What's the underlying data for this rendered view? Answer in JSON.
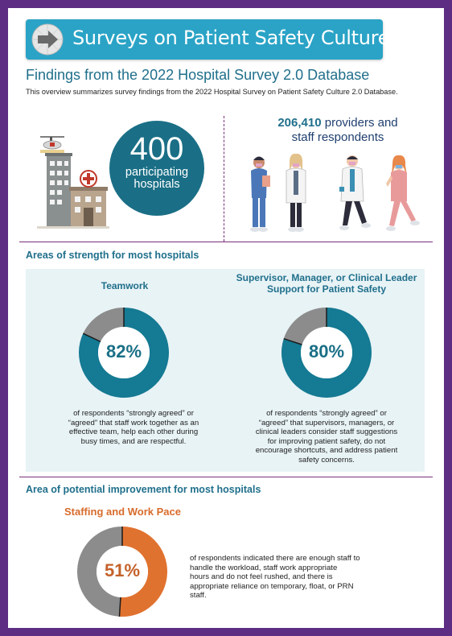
{
  "header": {
    "title": "Surveys on Patient Safety Culture",
    "trademark": "™",
    "subtitle": "Findings from the 2022 Hospital Survey 2.0 Database",
    "overview": "This overview summarizes survey findings from the 2022 Hospital Survey on Patient Safety Culture 2.0 Database."
  },
  "stats": {
    "hospitals_number": "400",
    "hospitals_label_1": "participating",
    "hospitals_label_2": "hospitals",
    "respondents_number": "206,410",
    "respondents_label_1": "providers and",
    "respondents_label_2": "staff respondents"
  },
  "strengths": {
    "heading": "Areas of strength for most hospitals",
    "items": [
      {
        "title_1": "Teamwork",
        "title_2": "",
        "percent_label": "82%",
        "percent": 82,
        "description_lines": [
          "of respondents “strongly agreed” or",
          "“agreed” that staff work together as an",
          "effective team, help each other during",
          "busy times, and are respectful."
        ]
      },
      {
        "title_1": "Supervisor, Manager, or Clinical Leader",
        "title_2": "Support for Patient Safety",
        "percent_label": "80%",
        "percent": 80,
        "description_lines": [
          "of respondents “strongly agreed” or",
          "“agreed” that supervisors, managers, or",
          "clinical leaders consider staff suggestions",
          "for improving patient safety, do not",
          "encourage shortcuts, and address patient",
          "safety concerns."
        ]
      }
    ]
  },
  "improvement": {
    "heading": "Area of potential improvement for most hospitals",
    "title": "Staffing and Work Pace",
    "percent_label": "51%",
    "percent": 51,
    "description_lines": [
      "of respondents indicated there are enough staff to",
      "handle the workload, staff work appropriate",
      "hours and do not feel rushed, and there is",
      "appropriate reliance on temporary, float, or PRN",
      "staff."
    ]
  },
  "colors": {
    "frame": "#5c2d82",
    "banner": "#2aa3c6",
    "teal_dark": "#1a6f86",
    "donut_strength": "#157a93",
    "donut_gray": "#8c8c8c",
    "donut_improve": "#e0722f",
    "strength_bg": "#e8f3f6"
  },
  "icons": [
    "arrow-logo-icon",
    "hospital-building-icon",
    "helicopter-icon",
    "healthcare-workers-icon"
  ]
}
